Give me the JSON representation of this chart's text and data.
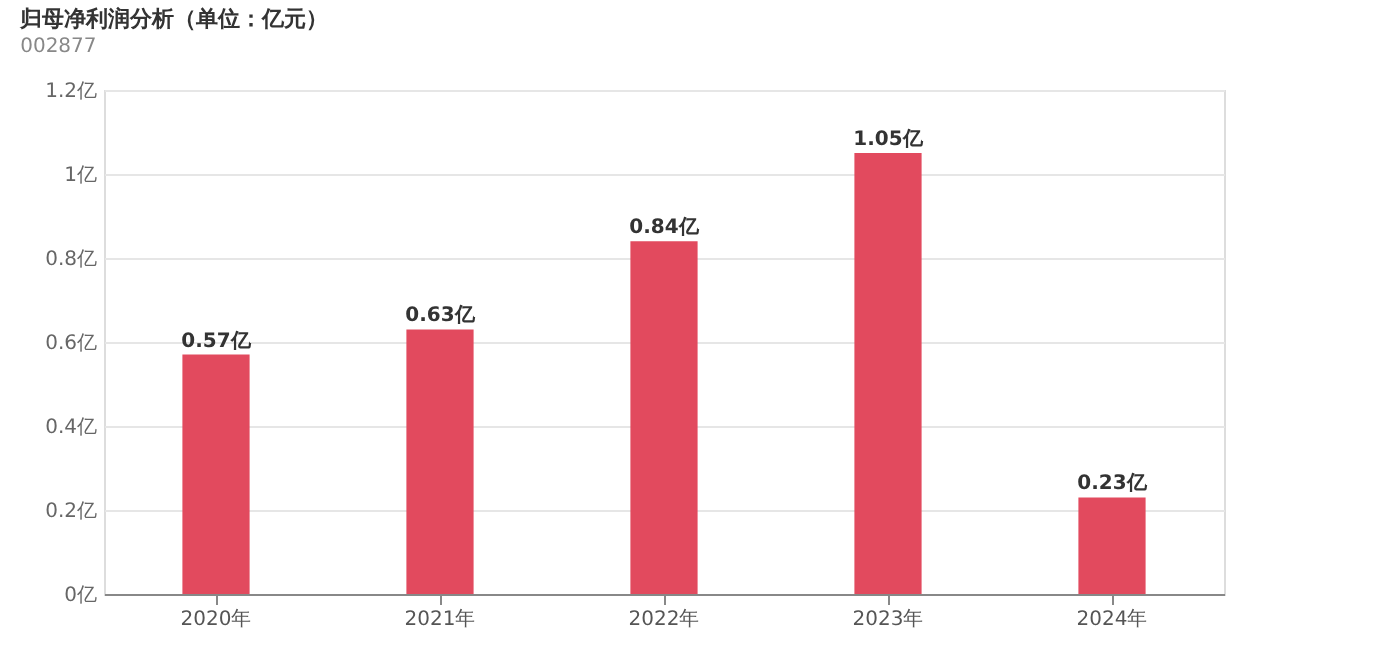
{
  "chart_data": {
    "type": "bar",
    "title": "归母净利润分析（单位：亿元）",
    "subtitle": "002877",
    "categories": [
      "2020年",
      "2021年",
      "2022年",
      "2023年",
      "2024年"
    ],
    "values": [
      0.57,
      0.63,
      0.84,
      1.05,
      0.23
    ],
    "value_labels": [
      "0.57亿",
      "0.63亿",
      "0.84亿",
      "1.05亿",
      "0.23亿"
    ],
    "color": "#e24a5e",
    "ylim": [
      0,
      1.2
    ],
    "yticks": [
      {
        "value": 0,
        "label": "0亿"
      },
      {
        "value": 0.2,
        "label": "0.2亿"
      },
      {
        "value": 0.4,
        "label": "0.4亿"
      },
      {
        "value": 0.6,
        "label": "0.6亿"
      },
      {
        "value": 0.8,
        "label": "0.8亿"
      },
      {
        "value": 1,
        "label": "1亿"
      },
      {
        "value": 1.2,
        "label": "1.2亿"
      }
    ],
    "grid": "y"
  }
}
